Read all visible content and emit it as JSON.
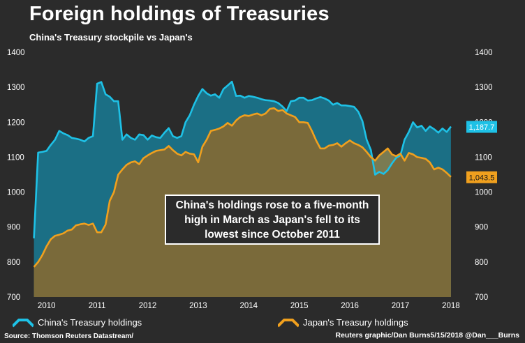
{
  "title": "Foreign holdings of Treasuries",
  "subtitle": "China's Treasury stockpile vs Japan's",
  "annotation": "China's holdings rose to a five-month high in March as Japan's fell to its lowest since October 2011",
  "source": "Source: Thomson Reuters Datastream/",
  "credit": "Reuters graphic/Dan Burns5/15/2018 @Dan___Burns",
  "colors": {
    "china": "#1ec1e6",
    "japan": "#f0a01e",
    "china_fill": "#1b6f85",
    "japan_fill": "#7a7b52",
    "overlap_fill": "#7a6a3a",
    "background": "#2b2b2b"
  },
  "chart_data": {
    "type": "area",
    "xlim": [
      2009.7,
      2018.25
    ],
    "ylim": [
      700,
      1400
    ],
    "yticks": [
      700,
      800,
      900,
      1000,
      1100,
      1200,
      1300,
      1400
    ],
    "xticks": [
      2010,
      2011,
      2012,
      2013,
      2014,
      2015,
      2016,
      2017,
      2018
    ],
    "grid": false,
    "legend_position": "bottom",
    "series": [
      {
        "name": "China's Treasury holdings",
        "last_label": "1,187.7",
        "points": [
          [
            2009.75,
            868
          ],
          [
            2009.833,
            1113
          ],
          [
            2009.917,
            1115
          ],
          [
            2010.0,
            1118
          ],
          [
            2010.083,
            1135
          ],
          [
            2010.167,
            1150
          ],
          [
            2010.25,
            1175
          ],
          [
            2010.333,
            1168
          ],
          [
            2010.417,
            1163
          ],
          [
            2010.5,
            1155
          ],
          [
            2010.583,
            1153
          ],
          [
            2010.667,
            1150
          ],
          [
            2010.75,
            1145
          ],
          [
            2010.833,
            1155
          ],
          [
            2010.917,
            1160
          ],
          [
            2011.0,
            1310
          ],
          [
            2011.083,
            1315
          ],
          [
            2011.167,
            1280
          ],
          [
            2011.25,
            1273
          ],
          [
            2011.333,
            1260
          ],
          [
            2011.417,
            1260
          ],
          [
            2011.5,
            1150
          ],
          [
            2011.583,
            1165
          ],
          [
            2011.667,
            1155
          ],
          [
            2011.75,
            1150
          ],
          [
            2011.833,
            1165
          ],
          [
            2011.917,
            1163
          ],
          [
            2012.0,
            1150
          ],
          [
            2012.083,
            1162
          ],
          [
            2012.167,
            1157
          ],
          [
            2012.25,
            1155
          ],
          [
            2012.333,
            1170
          ],
          [
            2012.417,
            1183
          ],
          [
            2012.5,
            1160
          ],
          [
            2012.583,
            1155
          ],
          [
            2012.667,
            1160
          ],
          [
            2012.75,
            1200
          ],
          [
            2012.833,
            1220
          ],
          [
            2012.917,
            1250
          ],
          [
            2013.0,
            1275
          ],
          [
            2013.083,
            1295
          ],
          [
            2013.167,
            1283
          ],
          [
            2013.25,
            1276
          ],
          [
            2013.333,
            1280
          ],
          [
            2013.417,
            1270
          ],
          [
            2013.5,
            1295
          ],
          [
            2013.583,
            1305
          ],
          [
            2013.667,
            1316
          ],
          [
            2013.75,
            1275
          ],
          [
            2013.833,
            1276
          ],
          [
            2013.917,
            1270
          ],
          [
            2014.0,
            1275
          ],
          [
            2014.083,
            1273
          ],
          [
            2014.167,
            1270
          ],
          [
            2014.25,
            1266
          ],
          [
            2014.333,
            1263
          ],
          [
            2014.417,
            1262
          ],
          [
            2014.5,
            1260
          ],
          [
            2014.583,
            1255
          ],
          [
            2014.667,
            1245
          ],
          [
            2014.75,
            1232
          ],
          [
            2014.833,
            1260
          ],
          [
            2014.917,
            1262
          ],
          [
            2015.0,
            1270
          ],
          [
            2015.083,
            1270
          ],
          [
            2015.167,
            1262
          ],
          [
            2015.25,
            1263
          ],
          [
            2015.333,
            1268
          ],
          [
            2015.417,
            1272
          ],
          [
            2015.5,
            1268
          ],
          [
            2015.583,
            1262
          ],
          [
            2015.667,
            1250
          ],
          [
            2015.75,
            1255
          ],
          [
            2015.833,
            1248
          ],
          [
            2015.917,
            1248
          ],
          [
            2016.0,
            1246
          ],
          [
            2016.083,
            1244
          ],
          [
            2016.167,
            1230
          ],
          [
            2016.25,
            1203
          ],
          [
            2016.333,
            1150
          ],
          [
            2016.417,
            1120
          ],
          [
            2016.5,
            1050
          ],
          [
            2016.583,
            1058
          ],
          [
            2016.667,
            1052
          ],
          [
            2016.75,
            1063
          ],
          [
            2016.833,
            1082
          ],
          [
            2016.917,
            1098
          ],
          [
            2017.0,
            1105
          ],
          [
            2017.083,
            1150
          ],
          [
            2017.167,
            1172
          ],
          [
            2017.25,
            1200
          ],
          [
            2017.333,
            1185
          ],
          [
            2017.417,
            1190
          ],
          [
            2017.5,
            1175
          ],
          [
            2017.583,
            1188
          ],
          [
            2017.667,
            1180
          ],
          [
            2017.75,
            1170
          ],
          [
            2017.833,
            1182
          ],
          [
            2017.917,
            1172
          ],
          [
            2018.0,
            1187.7
          ]
        ]
      },
      {
        "name": "Japan's Treasury holdings",
        "last_label": "1,043.5",
        "points": [
          [
            2009.75,
            786
          ],
          [
            2009.833,
            800
          ],
          [
            2009.917,
            820
          ],
          [
            2010.0,
            845
          ],
          [
            2010.083,
            865
          ],
          [
            2010.167,
            875
          ],
          [
            2010.25,
            878
          ],
          [
            2010.333,
            882
          ],
          [
            2010.417,
            890
          ],
          [
            2010.5,
            893
          ],
          [
            2010.583,
            905
          ],
          [
            2010.667,
            908
          ],
          [
            2010.75,
            910
          ],
          [
            2010.833,
            906
          ],
          [
            2010.917,
            910
          ],
          [
            2011.0,
            885
          ],
          [
            2011.083,
            885
          ],
          [
            2011.167,
            907
          ],
          [
            2011.25,
            975
          ],
          [
            2011.333,
            1000
          ],
          [
            2011.417,
            1050
          ],
          [
            2011.5,
            1065
          ],
          [
            2011.583,
            1078
          ],
          [
            2011.667,
            1085
          ],
          [
            2011.75,
            1088
          ],
          [
            2011.833,
            1080
          ],
          [
            2011.917,
            1097
          ],
          [
            2012.0,
            1105
          ],
          [
            2012.083,
            1112
          ],
          [
            2012.167,
            1118
          ],
          [
            2012.25,
            1120
          ],
          [
            2012.333,
            1122
          ],
          [
            2012.417,
            1132
          ],
          [
            2012.5,
            1120
          ],
          [
            2012.583,
            1110
          ],
          [
            2012.667,
            1105
          ],
          [
            2012.75,
            1115
          ],
          [
            2012.833,
            1110
          ],
          [
            2012.917,
            1108
          ],
          [
            2013.0,
            1085
          ],
          [
            2013.083,
            1130
          ],
          [
            2013.167,
            1150
          ],
          [
            2013.25,
            1175
          ],
          [
            2013.333,
            1178
          ],
          [
            2013.417,
            1182
          ],
          [
            2013.5,
            1188
          ],
          [
            2013.583,
            1198
          ],
          [
            2013.667,
            1190
          ],
          [
            2013.75,
            1205
          ],
          [
            2013.833,
            1215
          ],
          [
            2013.917,
            1220
          ],
          [
            2014.0,
            1218
          ],
          [
            2014.083,
            1222
          ],
          [
            2014.167,
            1225
          ],
          [
            2014.25,
            1220
          ],
          [
            2014.333,
            1225
          ],
          [
            2014.417,
            1238
          ],
          [
            2014.5,
            1240
          ],
          [
            2014.583,
            1232
          ],
          [
            2014.667,
            1235
          ],
          [
            2014.75,
            1225
          ],
          [
            2014.833,
            1220
          ],
          [
            2014.917,
            1215
          ],
          [
            2015.0,
            1200
          ],
          [
            2015.083,
            1200
          ],
          [
            2015.167,
            1198
          ],
          [
            2015.25,
            1175
          ],
          [
            2015.333,
            1148
          ],
          [
            2015.417,
            1125
          ],
          [
            2015.5,
            1125
          ],
          [
            2015.583,
            1133
          ],
          [
            2015.667,
            1135
          ],
          [
            2015.75,
            1140
          ],
          [
            2015.833,
            1130
          ],
          [
            2015.917,
            1140
          ],
          [
            2016.0,
            1148
          ],
          [
            2016.083,
            1140
          ],
          [
            2016.167,
            1135
          ],
          [
            2016.25,
            1128
          ],
          [
            2016.333,
            1115
          ],
          [
            2016.417,
            1100
          ],
          [
            2016.5,
            1090
          ],
          [
            2016.583,
            1105
          ],
          [
            2016.667,
            1115
          ],
          [
            2016.75,
            1125
          ],
          [
            2016.833,
            1108
          ],
          [
            2016.917,
            1103
          ],
          [
            2017.0,
            1110
          ],
          [
            2017.083,
            1090
          ],
          [
            2017.167,
            1112
          ],
          [
            2017.25,
            1108
          ],
          [
            2017.333,
            1100
          ],
          [
            2017.417,
            1098
          ],
          [
            2017.5,
            1095
          ],
          [
            2017.583,
            1085
          ],
          [
            2017.667,
            1065
          ],
          [
            2017.75,
            1070
          ],
          [
            2017.833,
            1065
          ],
          [
            2017.917,
            1055
          ],
          [
            2018.0,
            1043.5
          ]
        ]
      }
    ]
  }
}
